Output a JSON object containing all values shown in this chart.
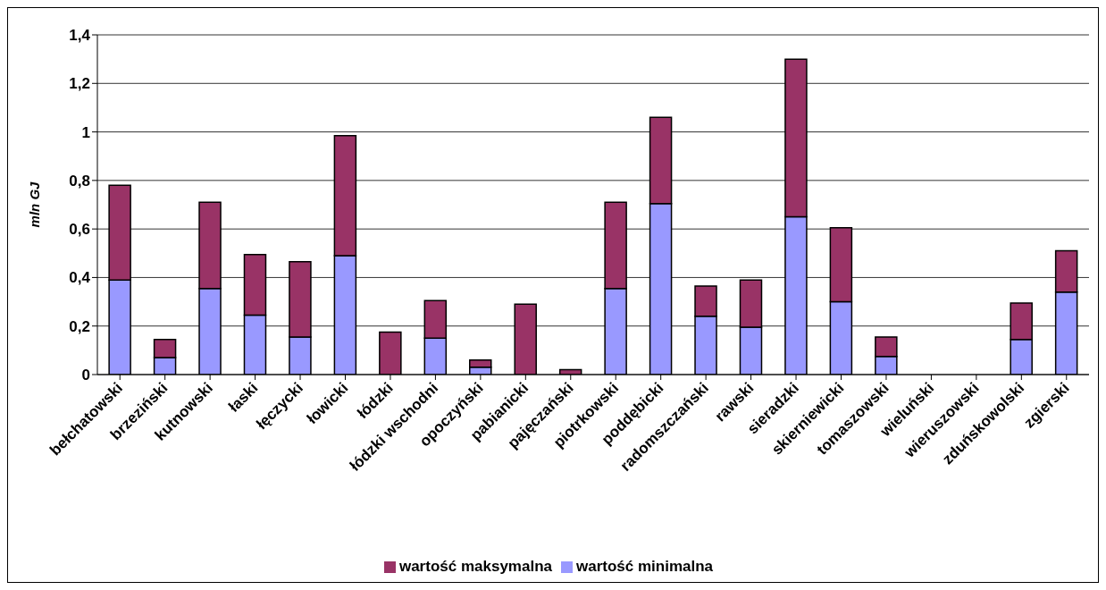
{
  "chart_data": {
    "type": "bar",
    "stacked": true,
    "ylabel": "mln GJ",
    "categories": [
      "bełchatowski",
      "brzeziński",
      "kutnowski",
      "łaski",
      "łęczycki",
      "łowicki",
      "łódzki",
      "łódzki wschodni",
      "opoczyński",
      "pabianicki",
      "pajęczański",
      "piotrkowski",
      "poddębicki",
      "radomszczański",
      "rawski",
      "sieradzki",
      "skierniewicki",
      "tomaszowski",
      "wieluński",
      "wieruszowski",
      "zduńskowolski",
      "zgierski"
    ],
    "series": [
      {
        "name": "wartość minimalna",
        "color": "#9999ff",
        "values": [
          0.39,
          0.07,
          0.355,
          0.245,
          0.155,
          0.49,
          0,
          0.15,
          0.03,
          0,
          0,
          0.355,
          0.705,
          0.24,
          0.195,
          0.65,
          0.3,
          0.075,
          0,
          0,
          0.145,
          0.34
        ]
      },
      {
        "name": "wartość maksymalna",
        "color": "#993366",
        "values": [
          0.39,
          0.075,
          0.355,
          0.25,
          0.31,
          0.495,
          0.175,
          0.155,
          0.03,
          0.29,
          0.02,
          0.355,
          0.355,
          0.125,
          0.195,
          0.65,
          0.305,
          0.08,
          0,
          0,
          0.15,
          0.17
        ]
      }
    ],
    "ylim": [
      0,
      1.4
    ],
    "yticks": [
      0,
      {
        "value": 0.2,
        "label": "0,2"
      },
      {
        "value": 0.4,
        "label": "0,4"
      },
      {
        "value": 0.6,
        "label": "0,6"
      },
      {
        "value": 0.8,
        "label": "0,8"
      },
      1,
      {
        "value": 1.2,
        "label": "1,2"
      },
      {
        "value": 1.4,
        "label": "1,4"
      }
    ],
    "grid": "y",
    "legend": "bottom"
  }
}
